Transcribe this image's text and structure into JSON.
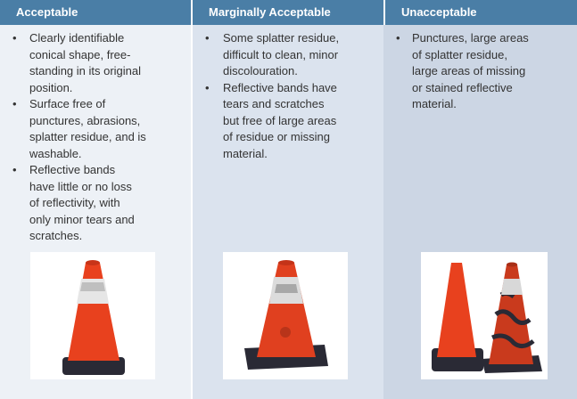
{
  "columns": [
    {
      "header": "Acceptable",
      "items": [
        "Clearly identifiable\nconical shape, free-\nstanding in its original\nposition.",
        "Surface free of\npunctures, abrasions,\nsplatter residue, and is\nwashable.",
        "Reflective bands\nhave little or no loss\nof reflectivity, with\nonly minor tears and\nscratches."
      ],
      "image_icon": "clean-traffic-cone"
    },
    {
      "header": "Marginally Acceptable",
      "items": [
        "Some splatter residue,\ndifficult to clean, minor\ndiscolouration.",
        "Reflective bands have\ntears and scratches\nbut free of large areas\nof residue or missing\nmaterial."
      ],
      "image_icon": "worn-traffic-cone"
    },
    {
      "header": "Unacceptable",
      "items": [
        "Punctures, large areas\nof splatter residue,\nlarge areas of missing\nor stained reflective\nmaterial."
      ],
      "image_icon": "damaged-traffic-cones"
    }
  ],
  "bullet": "•",
  "colors": {
    "header_bg": "#4a7ea6",
    "header_text": "#ffffff",
    "col1_bg": "#edf1f6",
    "col2_bg": "#dbe3ee",
    "col3_bg": "#ccd6e4",
    "cone_orange": "#e8411e",
    "cone_base": "#2a2a35"
  }
}
